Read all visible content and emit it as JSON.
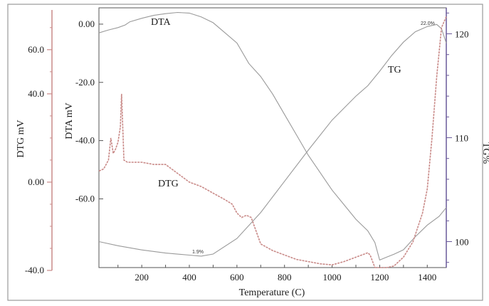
{
  "chart_data": {
    "type": "line",
    "title": "",
    "xlabel": "Temperature (C)",
    "xlim": [
      20,
      1480
    ],
    "x_ticks": [
      "200",
      "400",
      "600",
      "800",
      "1000",
      "1200",
      "1400"
    ],
    "axes": {
      "dtg": {
        "label": "DTG mV",
        "ylim": [
          -40,
          78
        ],
        "ticks": [
          "60.0",
          "40.0",
          "0.00",
          "-40.0"
        ],
        "tick_values": [
          60,
          40,
          0,
          -40
        ],
        "color": "#c98a88"
      },
      "dta": {
        "label": "DTA mV",
        "ylim": [
          -83.6,
          5.6
        ],
        "ticks": [
          "0.00",
          "-20.0",
          "-40.0",
          "-60.0"
        ],
        "tick_values": [
          0,
          -20,
          -40,
          -60
        ],
        "color": "#7a7a7a"
      },
      "tg": {
        "label": "TG%",
        "ylim": [
          97.5,
          122.5
        ],
        "ticks": [
          "120",
          "110",
          "100"
        ],
        "tick_values": [
          120,
          110,
          100
        ],
        "color": "#6a5a9a"
      }
    },
    "series": [
      {
        "name": "DTA",
        "axis": "dta",
        "color": "#9a9a9a",
        "x": [
          20,
          60,
          100,
          130,
          150,
          200,
          250,
          300,
          350,
          400,
          450,
          500,
          550,
          600,
          650,
          700,
          750,
          800,
          850,
          900,
          950,
          1000,
          1050,
          1100,
          1150,
          1180,
          1200,
          1230,
          1260,
          1300,
          1350,
          1400,
          1450,
          1480
        ],
        "y": [
          -3.0,
          -2.0,
          -1.2,
          -0.3,
          0.8,
          2.0,
          3.0,
          3.6,
          4.0,
          3.8,
          2.5,
          0.5,
          -3.0,
          -6.5,
          -13.5,
          -18.0,
          -24.0,
          -31.0,
          -38.0,
          -45.0,
          -51.0,
          -57.0,
          -62.0,
          -67.0,
          -71.0,
          -75.0,
          -81.0,
          -80.0,
          -79.0,
          -77.5,
          -73.0,
          -69.0,
          -66.0,
          -63.0
        ]
      },
      {
        "name": "TG",
        "axis": "tg",
        "color": "#9a9a9a",
        "x": [
          20,
          100,
          200,
          300,
          400,
          450,
          500,
          600,
          700,
          800,
          900,
          1000,
          1100,
          1150,
          1200,
          1250,
          1300,
          1350,
          1400,
          1440,
          1460,
          1480
        ],
        "y": [
          100.0,
          99.6,
          99.2,
          98.9,
          98.7,
          98.6,
          98.8,
          100.3,
          102.8,
          105.8,
          108.8,
          111.7,
          114.0,
          115.0,
          116.4,
          117.9,
          119.2,
          120.2,
          120.7,
          120.9,
          120.5,
          119.1
        ]
      },
      {
        "name": "DTG",
        "axis": "dtg",
        "color": "#c98a88",
        "x": [
          20,
          40,
          60,
          70,
          80,
          90,
          100,
          110,
          115,
          125,
          140,
          200,
          250,
          300,
          400,
          450,
          500,
          550,
          580,
          600,
          620,
          640,
          660,
          680,
          700,
          750,
          800,
          850,
          900,
          950,
          1000,
          1050,
          1100,
          1150,
          1160,
          1180,
          1200,
          1230,
          1260,
          1300,
          1340,
          1380,
          1400,
          1420,
          1440,
          1460,
          1480
        ],
        "y": [
          5.0,
          6.0,
          10.0,
          20.0,
          13.0,
          15.0,
          18.0,
          25.0,
          40.0,
          10.0,
          9.0,
          9.0,
          8.0,
          8.0,
          0.0,
          -2.0,
          -5.0,
          -8.0,
          -10.0,
          -14.0,
          -16.0,
          -15.0,
          -16.0,
          -22.0,
          -28.0,
          -31.0,
          -33.0,
          -35.0,
          -36.0,
          -37.0,
          -37.5,
          -36.0,
          -34.0,
          -32.0,
          -33.0,
          -42.0,
          -42.0,
          -40.0,
          -38.0,
          -34.0,
          -27.0,
          -14.0,
          -3.0,
          20.0,
          48.0,
          70.0,
          75.0
        ]
      }
    ],
    "annotations": [
      {
        "text": "DTA",
        "series": "DTA"
      },
      {
        "text": "TG",
        "series": "TG"
      },
      {
        "text": "DTG",
        "series": "DTG"
      },
      {
        "text": "1.9%",
        "series": "TG",
        "x": 460,
        "y": 98.6
      },
      {
        "text": "22.0%",
        "series": "TG",
        "x": 1440,
        "y": 120.9
      }
    ]
  }
}
